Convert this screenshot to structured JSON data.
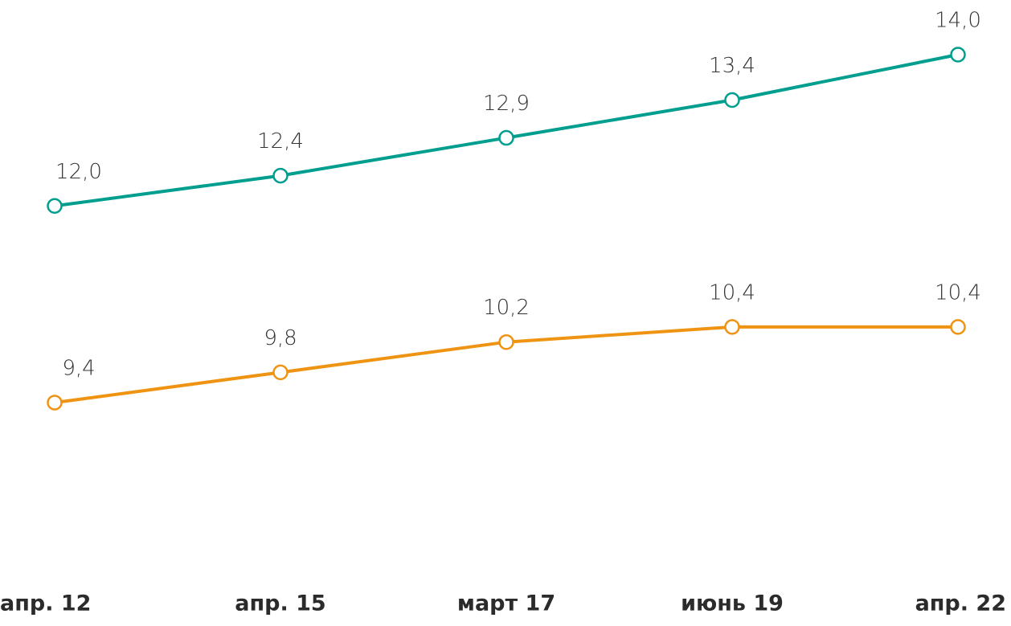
{
  "chart_data": {
    "type": "line",
    "categories": [
      "апр. 12",
      "апр. 15",
      "март 17",
      "июнь 19",
      "апр. 22"
    ],
    "series": [
      {
        "color": "#009e8e",
        "values": [
          12.0,
          12.4,
          12.9,
          13.4,
          14.0
        ],
        "value_labels": [
          "12,0",
          "12,4",
          "12,9",
          "13,4",
          "14,0"
        ]
      },
      {
        "color": "#ef9412",
        "values": [
          9.4,
          9.8,
          10.2,
          10.4,
          10.4
        ],
        "value_labels": [
          "9,4",
          "9,8",
          "10,2",
          "10,4",
          "10,4"
        ]
      }
    ]
  }
}
